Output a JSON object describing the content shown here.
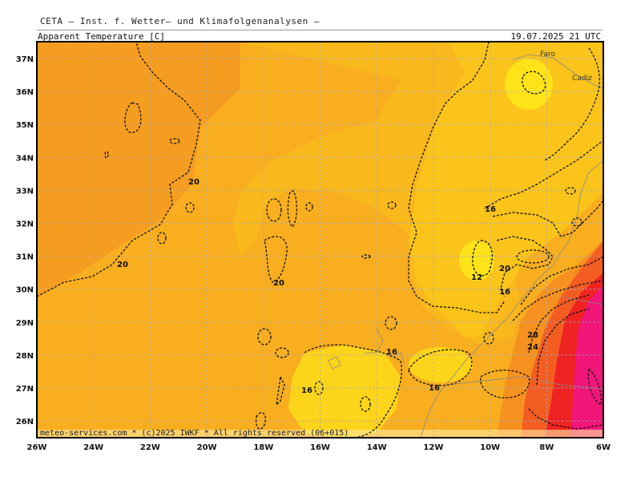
{
  "header": {
    "title": "CETA — Inst. f. Wetter— und Klimafolgenanalysen —",
    "variable": "Apparent_Temperature [C]",
    "valid_time": "19.07.2025  21 UTC"
  },
  "footer": {
    "credit": "meteo-services.com * (c)2025 IWKF * All rights reserved (06+015)"
  },
  "axes": {
    "lon_labels": [
      "26W",
      "24W",
      "22W",
      "20W",
      "18W",
      "16W",
      "14W",
      "12W",
      "10W",
      "8W",
      "6W"
    ],
    "lat_labels": [
      "37N",
      "36N",
      "35N",
      "34N",
      "33N",
      "32N",
      "31N",
      "30N",
      "29N",
      "28N",
      "27N",
      "26N"
    ]
  },
  "places": [
    "Faro",
    "Cadiz"
  ],
  "contour_labels": [
    "20",
    "20",
    "20",
    "16",
    "20",
    "16",
    "12",
    "16",
    "28",
    "24",
    "16",
    "16",
    "16"
  ],
  "colors": {
    "warm_orange": "#f6a21e",
    "mid_orange": "#f8b21c",
    "light_orange": "#fbc11a",
    "yellow": "#fde418",
    "red": "#f02323",
    "magenta": "#f2157a"
  }
}
